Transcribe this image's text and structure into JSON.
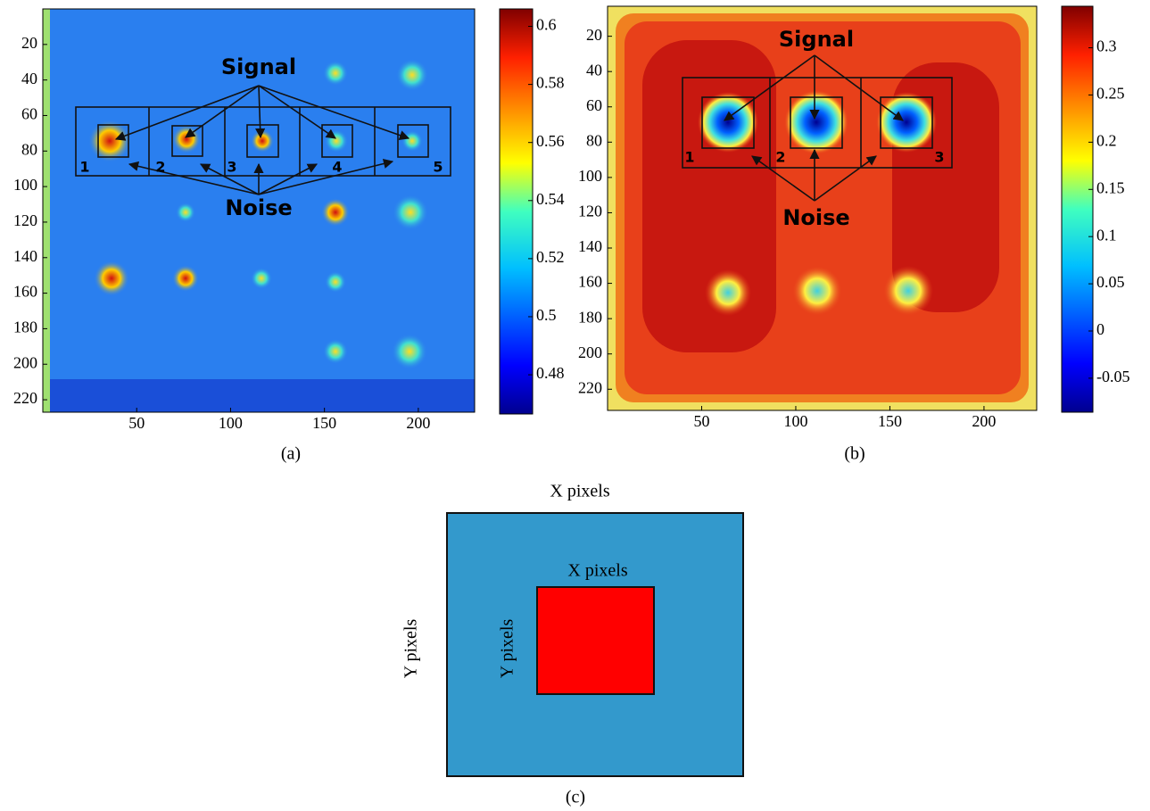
{
  "chart_data": [
    {
      "type": "heatmap",
      "caption": "(a)",
      "xlim": [
        0,
        230
      ],
      "xticks": [
        50,
        100,
        150,
        200
      ],
      "ylim": [
        227,
        0
      ],
      "yticks": [
        20,
        40,
        60,
        80,
        100,
        120,
        140,
        160,
        180,
        200,
        220
      ],
      "colorbar": {
        "clim": [
          0.4665,
          0.606
        ],
        "ticks": [
          0.48,
          0.5,
          0.52,
          0.54,
          0.56,
          0.58,
          0.6
        ]
      },
      "annotations": {
        "signal": "Signal",
        "noise": "Noise",
        "regions": [
          "1",
          "2",
          "3",
          "4",
          "5"
        ]
      }
    },
    {
      "type": "heatmap",
      "caption": "(b)",
      "xlim": [
        0,
        228
      ],
      "xticks": [
        50,
        100,
        150,
        200
      ],
      "ylim": [
        232,
        3
      ],
      "yticks": [
        20,
        40,
        60,
        80,
        100,
        120,
        140,
        160,
        180,
        200,
        220
      ],
      "colorbar": {
        "clim": [
          -0.086,
          0.344
        ],
        "ticks": [
          -0.05,
          0,
          0.05,
          0.1,
          0.15,
          0.2,
          0.25,
          0.3
        ]
      },
      "annotations": {
        "signal": "Signal",
        "noise": "Noise",
        "regions": [
          "1",
          "2",
          "3"
        ]
      }
    }
  ],
  "diagram": {
    "caption": "(c)",
    "outer_width": "X pixels",
    "outer_height": "Y pixels",
    "inner_width": "X pixels",
    "inner_height": "Y pixels"
  }
}
